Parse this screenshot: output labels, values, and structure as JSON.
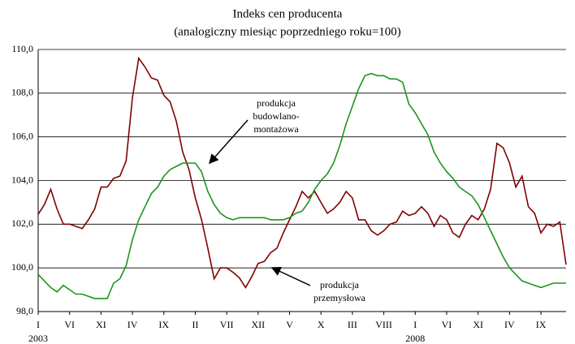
{
  "chart_data": {
    "type": "line",
    "title": "Indeks cen producenta",
    "subtitle": "(analogiczny miesiąc poprzedniego roku=100)",
    "categories": [
      "I",
      null,
      null,
      null,
      null,
      "VI",
      null,
      null,
      null,
      null,
      "XI",
      null,
      null,
      null,
      null,
      "IV",
      null,
      null,
      null,
      null,
      "IX",
      null,
      null,
      null,
      null,
      "II",
      null,
      null,
      null,
      null,
      "VII",
      null,
      null,
      null,
      null,
      "XII",
      null,
      null,
      null,
      null,
      "V",
      null,
      null,
      null,
      null,
      "X",
      null,
      null,
      null,
      null,
      "III",
      null,
      null,
      null,
      null,
      "VIII",
      null,
      null,
      null,
      null,
      "I",
      null,
      null,
      null,
      null,
      "VI",
      null,
      null,
      null,
      null,
      "XI",
      null,
      null,
      null,
      null,
      "IV",
      null,
      null,
      null,
      null,
      "IX",
      null,
      null,
      null,
      null
    ],
    "year_labels": [
      "2003",
      "2008"
    ],
    "ylim": [
      98,
      110
    ],
    "yticks": [
      {
        "value": 98,
        "label": "98,0"
      },
      {
        "value": 100,
        "label": "100,0"
      },
      {
        "value": 102,
        "label": "102,0"
      },
      {
        "value": 104,
        "label": "104,0"
      },
      {
        "value": 106,
        "label": "106,0"
      },
      {
        "value": 108,
        "label": "108,0"
      },
      {
        "value": 110,
        "label": "110,0"
      }
    ],
    "grid": true,
    "series": [
      {
        "label_lines": [
          "produkcja",
          "przemysłowa"
        ],
        "color": "#800000",
        "values": [
          102.45,
          102.9,
          103.6,
          102.7,
          102.0,
          102.0,
          101.9,
          101.8,
          102.2,
          102.7,
          103.7,
          103.7,
          104.1,
          104.2,
          104.9,
          107.8,
          109.6,
          109.2,
          108.7,
          108.6,
          107.9,
          107.6,
          106.7,
          105.3,
          104.5,
          103.2,
          102.2,
          100.9,
          99.5,
          100.0,
          100.0,
          99.8,
          99.55,
          99.1,
          99.6,
          100.2,
          100.3,
          100.7,
          100.9,
          101.6,
          102.2,
          102.8,
          103.5,
          103.2,
          103.5,
          103.0,
          102.5,
          102.7,
          103.0,
          103.5,
          103.2,
          102.2,
          102.2,
          101.7,
          101.5,
          101.7,
          102.0,
          102.1,
          102.6,
          102.4,
          102.5,
          102.8,
          102.5,
          101.9,
          102.4,
          102.2,
          101.6,
          101.4,
          102.0,
          102.4,
          102.2,
          102.7,
          103.6,
          105.7,
          105.5,
          104.8,
          103.7,
          104.2,
          102.8,
          102.5,
          101.6,
          102.0,
          101.9,
          102.1,
          100.15
        ]
      },
      {
        "label_lines": [
          "produkcja",
          "budowlano-",
          "montażowa"
        ],
        "color": "#1a961a",
        "values": [
          99.7,
          99.4,
          99.1,
          98.9,
          99.2,
          99.0,
          98.8,
          98.8,
          98.7,
          98.6,
          98.6,
          98.6,
          99.3,
          99.5,
          100.1,
          101.3,
          102.2,
          102.8,
          103.4,
          103.7,
          104.2,
          104.5,
          104.65,
          104.8,
          104.8,
          104.8,
          104.4,
          103.5,
          102.9,
          102.5,
          102.3,
          102.2,
          102.3,
          102.3,
          102.3,
          102.3,
          102.3,
          102.2,
          102.2,
          102.2,
          102.3,
          102.5,
          102.6,
          103.0,
          103.6,
          104.0,
          104.3,
          104.8,
          105.6,
          106.6,
          107.4,
          108.2,
          108.8,
          108.9,
          108.8,
          108.8,
          108.65,
          108.65,
          108.5,
          107.5,
          107.1,
          106.6,
          106.1,
          105.3,
          104.8,
          104.4,
          104.1,
          103.7,
          103.5,
          103.3,
          102.9,
          102.3,
          101.7,
          101.1,
          100.5,
          100.0,
          99.7,
          99.4,
          99.3,
          99.2,
          99.1,
          99.2,
          99.3,
          99.3,
          99.3
        ]
      }
    ]
  }
}
